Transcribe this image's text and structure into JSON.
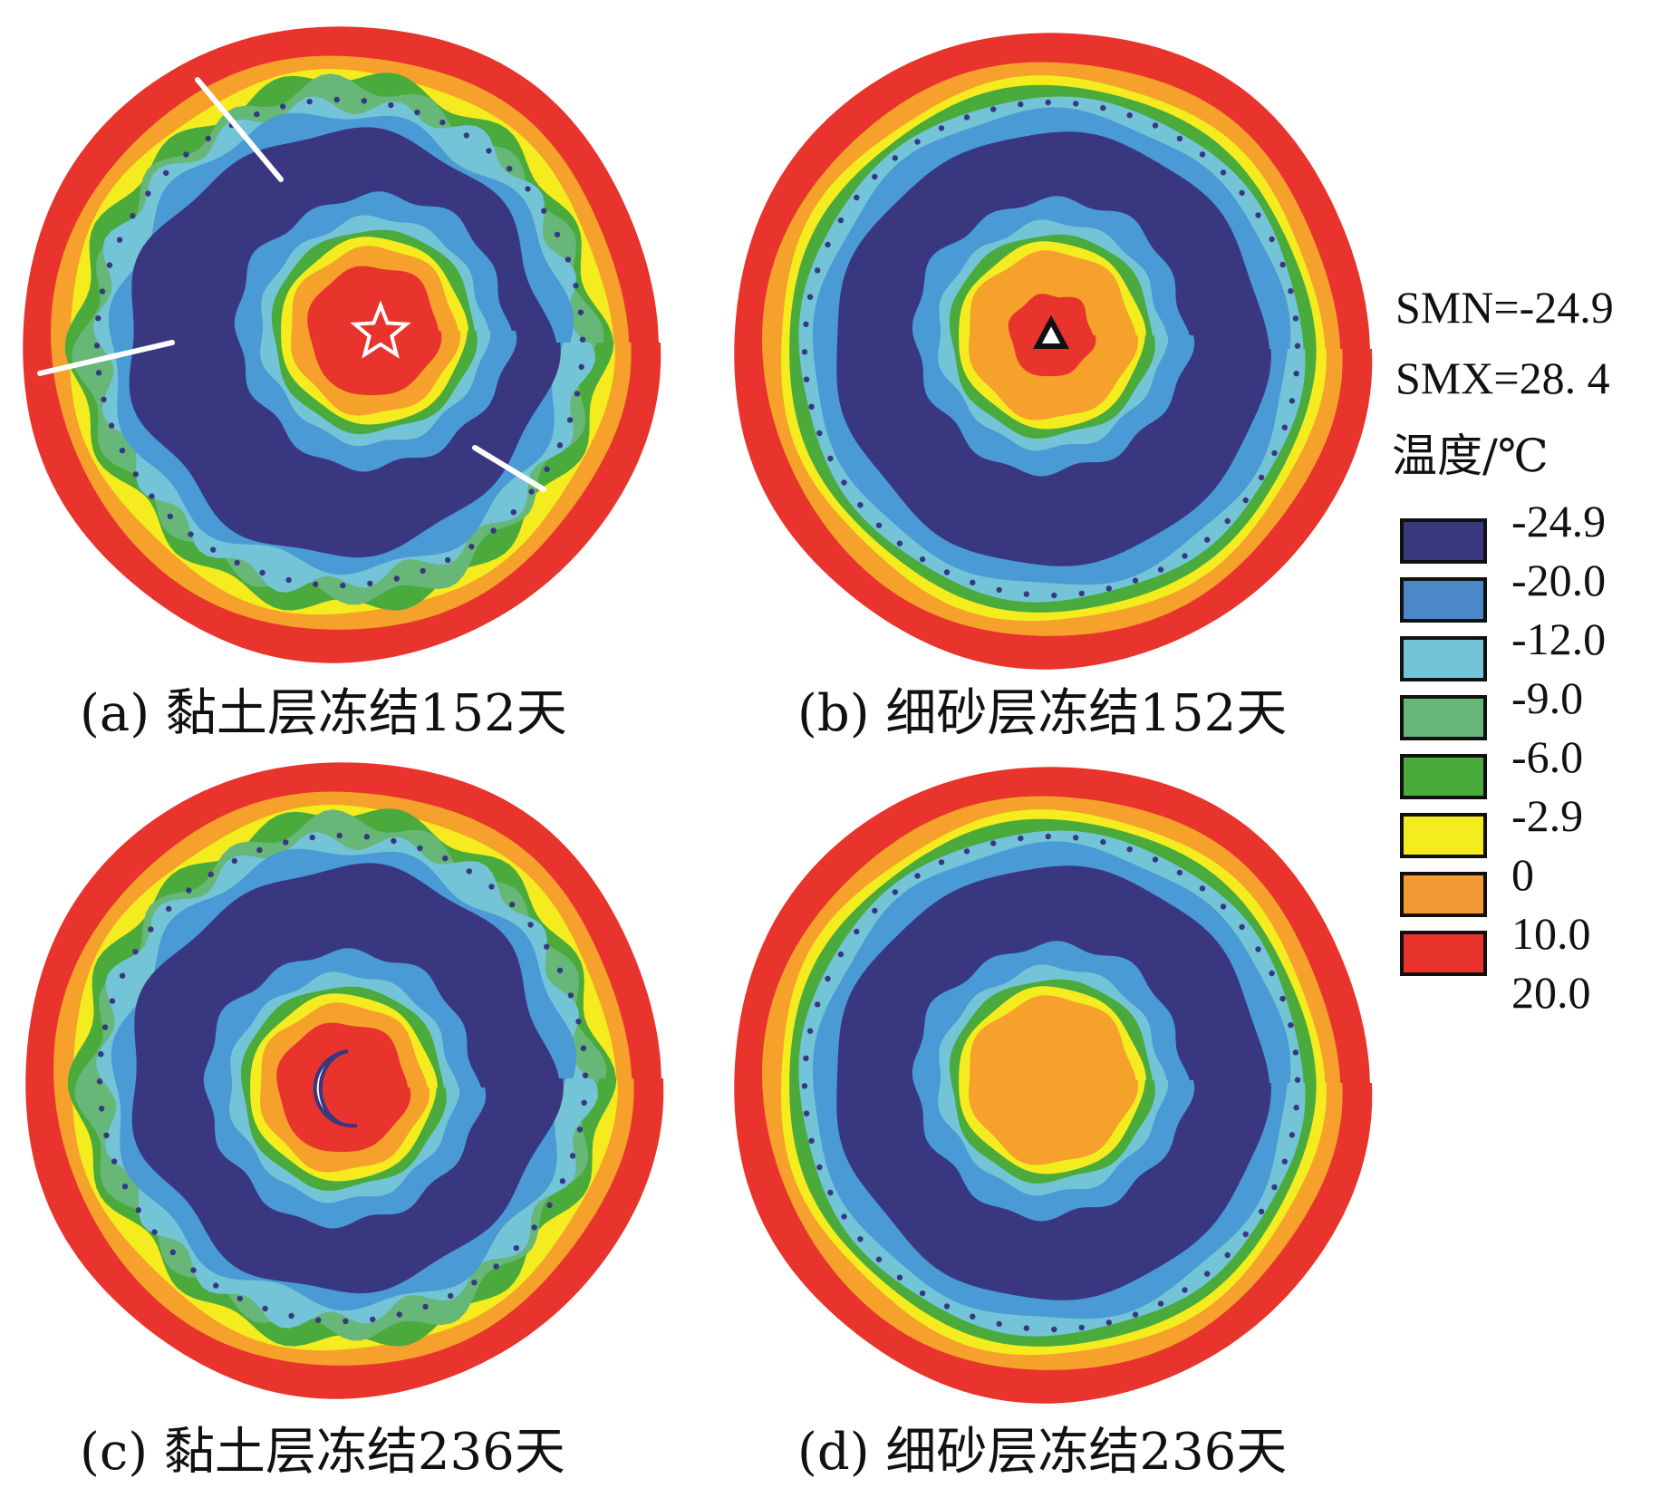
{
  "panels": [
    {
      "id": "a",
      "caption": "(a) 黏土层冻结152天",
      "marker": "star",
      "core_outer": "orange",
      "core_inner": "red"
    },
    {
      "id": "b",
      "caption": "(b) 细砂层冻结152天",
      "marker": "triangle",
      "core_outer": "orange",
      "core_inner": "red"
    },
    {
      "id": "c",
      "caption": "(c) 黏土层冻结236天",
      "marker": "crescent",
      "core_outer": "orange",
      "core_inner": "red"
    },
    {
      "id": "d",
      "caption": "(d) 细砂层冻结236天",
      "marker": "",
      "core_outer": "orange",
      "core_inner": ""
    }
  ],
  "legend": {
    "smn": "SMN=-24.9",
    "smx": "SMX=28. 4",
    "title": "温度/℃",
    "ticks": [
      "-24.9",
      "-20.0",
      "-12.0",
      "-9.0",
      "-6.0",
      "-2.9",
      "0",
      "10.0",
      "20.0"
    ],
    "colors": [
      "#3a3781",
      "#4a88c7",
      "#74c4d8",
      "#67b778",
      "#4aaa3c",
      "#f5ec1f",
      "#f39a34",
      "#e8342c"
    ]
  },
  "palette": {
    "red": "#e8342c",
    "orange": "#f5a12b",
    "yellow": "#f5ec1f",
    "green": "#4aaa3c",
    "lightgreen": "#67b778",
    "cyan": "#74c4d8",
    "blue": "#4a9ad6",
    "navy": "#3a3781"
  }
}
